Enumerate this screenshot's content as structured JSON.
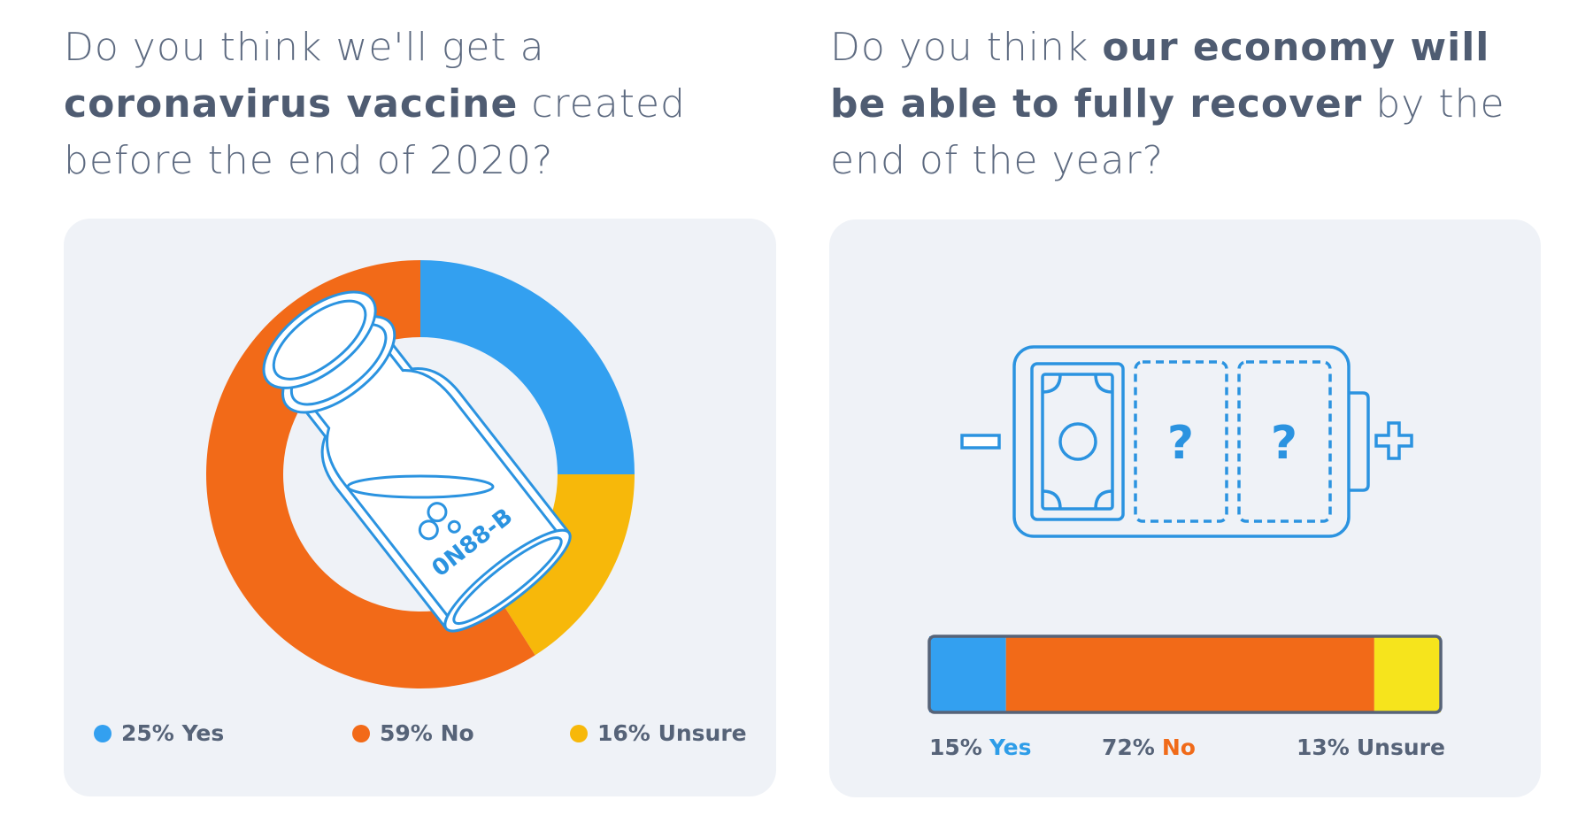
{
  "questions": {
    "vaccine": {
      "pre": "Do you think we'll get a",
      "bold": "coronavirus vaccine",
      "post1": "created",
      "post2": "before the end of 2020?"
    },
    "economy": {
      "pre": "Do you think",
      "bold1": "our economy will",
      "bold2": "be able to fully recover",
      "post1": "by the",
      "post2": "end of the year?"
    }
  },
  "illustrations": {
    "vial_label": "0N88-B",
    "battery_slot_1": "?",
    "battery_slot_2": "?",
    "battery_minus": "minus-icon",
    "battery_plus": "plus-icon",
    "battery_money": "banknote-icon"
  },
  "colors": {
    "yes": "#33a0f0",
    "no": "#f26a18",
    "unsure_donut": "#f7b80a",
    "unsure_bar": "#f6e41c",
    "line": "#2b93e0",
    "panel": "#eff2f7",
    "text": "#566378"
  },
  "chart_data": [
    {
      "type": "pie",
      "variant": "donut",
      "categories": [
        "Yes",
        "No",
        "Unsure"
      ],
      "values": [
        25,
        59,
        16
      ],
      "unit": "%",
      "legend": [
        {
          "pct": "25%",
          "label": "Yes"
        },
        {
          "pct": "59%",
          "label": "No"
        },
        {
          "pct": "16%",
          "label": "Unsure"
        }
      ],
      "legend_position": "bottom"
    },
    {
      "type": "bar",
      "variant": "stacked-horizontal",
      "categories": [
        "Yes",
        "No",
        "Unsure"
      ],
      "values": [
        15,
        72,
        13
      ],
      "unit": "%",
      "legend": [
        {
          "pct": "15%",
          "label": "Yes"
        },
        {
          "pct": "72%",
          "label": "No"
        },
        {
          "pct": "13%",
          "label": "Unsure"
        }
      ],
      "legend_position": "bottom"
    }
  ]
}
